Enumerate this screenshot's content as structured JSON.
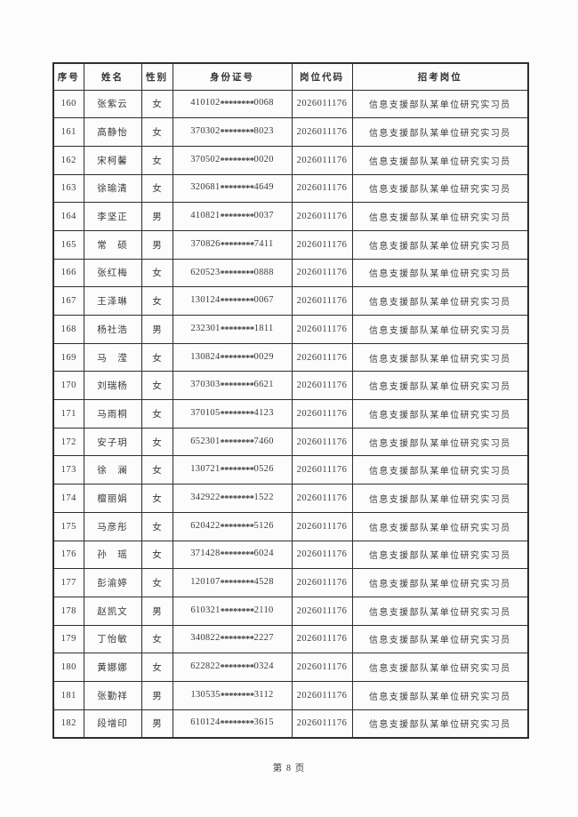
{
  "document": {
    "footer": {
      "page_label": "第 8 页"
    }
  },
  "colors": {
    "background": "#fcfcfc",
    "border": "#2e2e2e",
    "text": "#3a3a3a"
  },
  "table": {
    "columns": [
      {
        "key": "index",
        "label": "序号"
      },
      {
        "key": "name",
        "label": "姓名"
      },
      {
        "key": "gender",
        "label": "性别"
      },
      {
        "key": "id_number",
        "label": "身份证号"
      },
      {
        "key": "job_code",
        "label": "岗位代码"
      },
      {
        "key": "job_title",
        "label": "招考岗位"
      }
    ],
    "rows": [
      [
        "160",
        "张紫云",
        "女",
        "410102********0068",
        "2026011176",
        "信息支援部队某单位研究实习员"
      ],
      [
        "161",
        "高静怡",
        "女",
        "370302********8023",
        "2026011176",
        "信息支援部队某单位研究实习员"
      ],
      [
        "162",
        "宋柯馨",
        "女",
        "370502********0020",
        "2026011176",
        "信息支援部队某单位研究实习员"
      ],
      [
        "163",
        "徐瑜清",
        "女",
        "320681********4649",
        "2026011176",
        "信息支援部队某单位研究实习员"
      ],
      [
        "164",
        "李坚正",
        "男",
        "410821********0037",
        "2026011176",
        "信息支援部队某单位研究实习员"
      ],
      [
        "165",
        "常　硕",
        "男",
        "370826********7411",
        "2026011176",
        "信息支援部队某单位研究实习员"
      ],
      [
        "166",
        "张红梅",
        "女",
        "620523********0888",
        "2026011176",
        "信息支援部队某单位研究实习员"
      ],
      [
        "167",
        "王泽琳",
        "女",
        "130124********0067",
        "2026011176",
        "信息支援部队某单位研究实习员"
      ],
      [
        "168",
        "杨社浩",
        "男",
        "232301********1811",
        "2026011176",
        "信息支援部队某单位研究实习员"
      ],
      [
        "169",
        "马　滢",
        "女",
        "130824********0029",
        "2026011176",
        "信息支援部队某单位研究实习员"
      ],
      [
        "170",
        "刘瑞杨",
        "女",
        "370303********6621",
        "2026011176",
        "信息支援部队某单位研究实习员"
      ],
      [
        "171",
        "马雨桐",
        "女",
        "370105********4123",
        "2026011176",
        "信息支援部队某单位研究实习员"
      ],
      [
        "172",
        "安子玥",
        "女",
        "652301********7460",
        "2026011176",
        "信息支援部队某单位研究实习员"
      ],
      [
        "173",
        "徐　澜",
        "女",
        "130721********0526",
        "2026011176",
        "信息支援部队某单位研究实习员"
      ],
      [
        "174",
        "檀丽娟",
        "女",
        "342922********1522",
        "2026011176",
        "信息支援部队某单位研究实习员"
      ],
      [
        "175",
        "马彦彤",
        "女",
        "620422********5126",
        "2026011176",
        "信息支援部队某单位研究实习员"
      ],
      [
        "176",
        "孙　瑶",
        "女",
        "371428********6024",
        "2026011176",
        "信息支援部队某单位研究实习员"
      ],
      [
        "177",
        "彭渝婷",
        "女",
        "120107********4528",
        "2026011176",
        "信息支援部队某单位研究实习员"
      ],
      [
        "178",
        "赵凯文",
        "男",
        "610321********2110",
        "2026011176",
        "信息支援部队某单位研究实习员"
      ],
      [
        "179",
        "丁怡敏",
        "女",
        "340822********2227",
        "2026011176",
        "信息支援部队某单位研究实习员"
      ],
      [
        "180",
        "黄娜娜",
        "女",
        "622822********0324",
        "2026011176",
        "信息支援部队某单位研究实习员"
      ],
      [
        "181",
        "张勤祥",
        "男",
        "130535********3112",
        "2026011176",
        "信息支援部队某单位研究实习员"
      ],
      [
        "182",
        "段增印",
        "男",
        "610124********3615",
        "2026011176",
        "信息支援部队某单位研究实习员"
      ]
    ]
  }
}
